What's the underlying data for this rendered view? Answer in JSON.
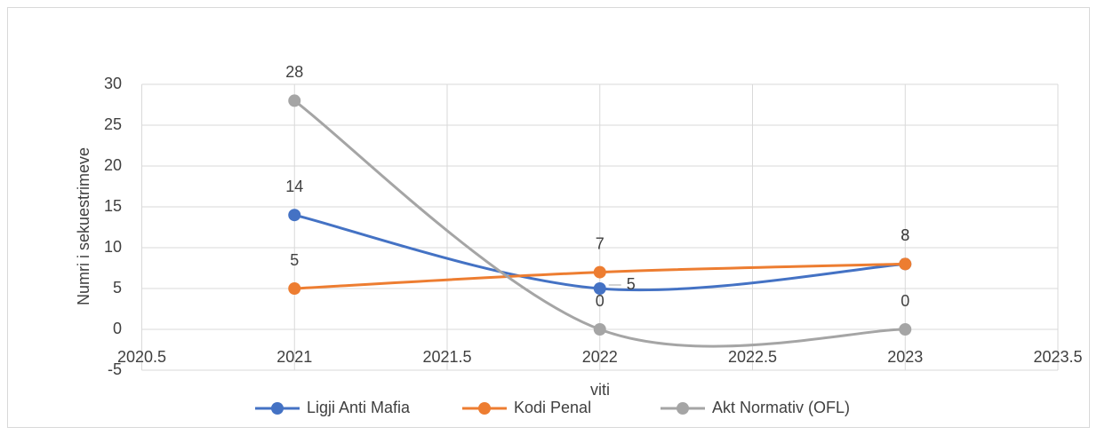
{
  "chart_data": {
    "type": "scatter_smooth",
    "x_label": "viti",
    "y_label": "Numri i sekuestrimeve",
    "x": [
      2021,
      2022,
      2023
    ],
    "series": [
      {
        "name": "Ligji Anti Mafia",
        "color": "#4472c4",
        "values": [
          14,
          5,
          8
        ]
      },
      {
        "name": "Kodi Penal",
        "color": "#ed7d31",
        "values": [
          5,
          7,
          8
        ]
      },
      {
        "name": "Akt Normativ (OFL)",
        "color": "#a5a5a5",
        "values": [
          28,
          0,
          0
        ]
      }
    ],
    "xlim": [
      2020.5,
      2023.5
    ],
    "xticks": [
      2020.5,
      2021,
      2021.5,
      2022,
      2022.5,
      2023,
      2023.5
    ],
    "ylim": [
      -5,
      30
    ],
    "yticks": [
      -5,
      0,
      5,
      10,
      15,
      20,
      25,
      30
    ],
    "grid": true,
    "legend": "bottom"
  }
}
